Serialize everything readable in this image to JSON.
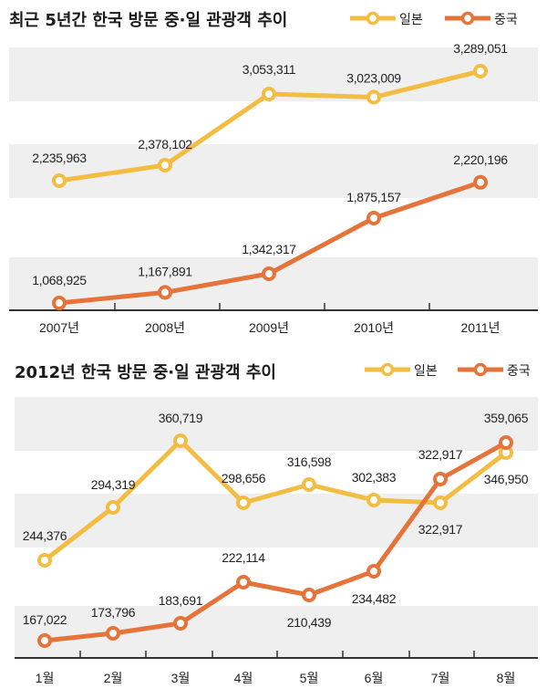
{
  "colors": {
    "japan": "#f2bd42",
    "china": "#e5733a",
    "band": "#efefef",
    "axis": "#333333"
  },
  "chart_data": [
    {
      "type": "line",
      "title": "최근 5년간 한국 방문 중·일 관광객 추이",
      "legend": [
        "일본",
        "중국"
      ],
      "legend_position": "top-right",
      "categories": [
        "2007년",
        "2008년",
        "2009년",
        "2010년",
        "2011년"
      ],
      "series": [
        {
          "name": "일본",
          "values": [
            2235963,
            2378102,
            3053311,
            3023009,
            3289051
          ],
          "labels": [
            "2,235,963",
            "2,378,102",
            "3,053,311",
            "3,023,009",
            "3,289,051"
          ]
        },
        {
          "name": "중국",
          "values": [
            1068925,
            1167891,
            1342317,
            1875157,
            2220196
          ],
          "labels": [
            "1,068,925",
            "1,167,891",
            "1,342,317",
            "1,875,157",
            "2,220,196"
          ]
        }
      ],
      "xlabel": "",
      "ylabel": "",
      "grid": "alternating-bands"
    },
    {
      "type": "line",
      "title": "2012년 한국 방문 중·일 관광객 추이",
      "legend": [
        "일본",
        "중국"
      ],
      "legend_position": "top-right",
      "categories": [
        "1월",
        "2월",
        "3월",
        "4월",
        "5월",
        "6월",
        "7월",
        "8월"
      ],
      "series": [
        {
          "name": "일본",
          "values": [
            244376,
            294319,
            360719,
            298656,
            316598,
            302383,
            322917,
            346950
          ],
          "labels": [
            "244,376",
            "294,319",
            "360,719",
            "298,656",
            "316,598",
            "302,383",
            "322,917",
            "346,950"
          ]
        },
        {
          "name": "중국",
          "values": [
            167022,
            173796,
            183691,
            222114,
            210439,
            234482,
            322917,
            359065
          ],
          "labels": [
            "167,022",
            "173,796",
            "183,691",
            "222,114",
            "210,439",
            "234,482",
            "322,917",
            "359,065"
          ]
        }
      ],
      "xlabel": "",
      "ylabel": "",
      "grid": "alternating-bands"
    }
  ]
}
